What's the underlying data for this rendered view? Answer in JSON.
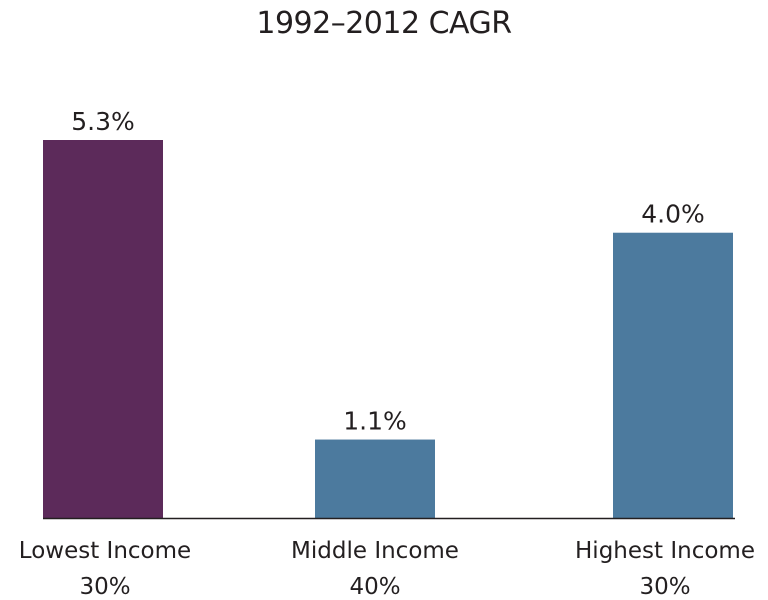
{
  "chart_data": {
    "type": "bar",
    "title": "1992–2012 CAGR",
    "categories": [
      "Lowest Income",
      "Middle Income",
      "Highest Income"
    ],
    "category_shares": [
      "30%",
      "40%",
      "30%"
    ],
    "values": [
      5.3,
      1.1,
      4.0
    ],
    "value_labels": [
      "5.3%",
      "1.1%",
      "4.0%"
    ],
    "bar_colors": [
      "#5c2a5a",
      "#4c7a9e",
      "#4c7a9e"
    ],
    "ylim": [
      0,
      5.3
    ],
    "grid": false,
    "legend": "none",
    "xlabel": "",
    "ylabel": ""
  }
}
